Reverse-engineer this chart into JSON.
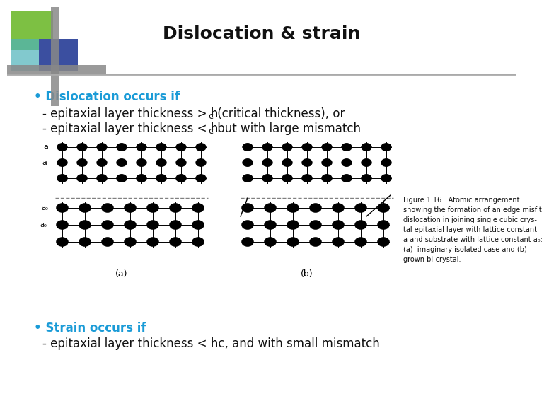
{
  "title": "Dislocation & strain",
  "title_fontsize": 18,
  "background_color": "#ffffff",
  "bullet1_label": "• Dislocation occurs if",
  "bullet1_color": "#1a9bd7",
  "bullet2_label": "• Strain occurs if",
  "bullet2_color": "#1a9bd7",
  "line1_before": "- epitaxial layer thickness > h",
  "line1_sub": "c",
  "line1_after": " (critical thickness), or",
  "line2_before": "- epitaxial layer thickness < h",
  "line2_sub": "c",
  "line2_after": " but with large mismatch",
  "line3_text": "- epitaxial layer thickness < hc, and with small mismatch",
  "text_fontsize": 12,
  "body_color": "#111111",
  "cap_text": "Figure 1.16   Atomic arrangement\nshowing the formation of an edge misfit\ndislocation in joining single cubic crys-\ntal epitaxial layer with lattice constant\na and substrate with lattice constant a₀:\n(a)  imaginary isolated case and (b)\ngrown bi-crystal.",
  "green_color": "#7dc043",
  "teal_color": "#4db3ba",
  "blue_color": "#3b4fa0",
  "gray_color": "#888888"
}
